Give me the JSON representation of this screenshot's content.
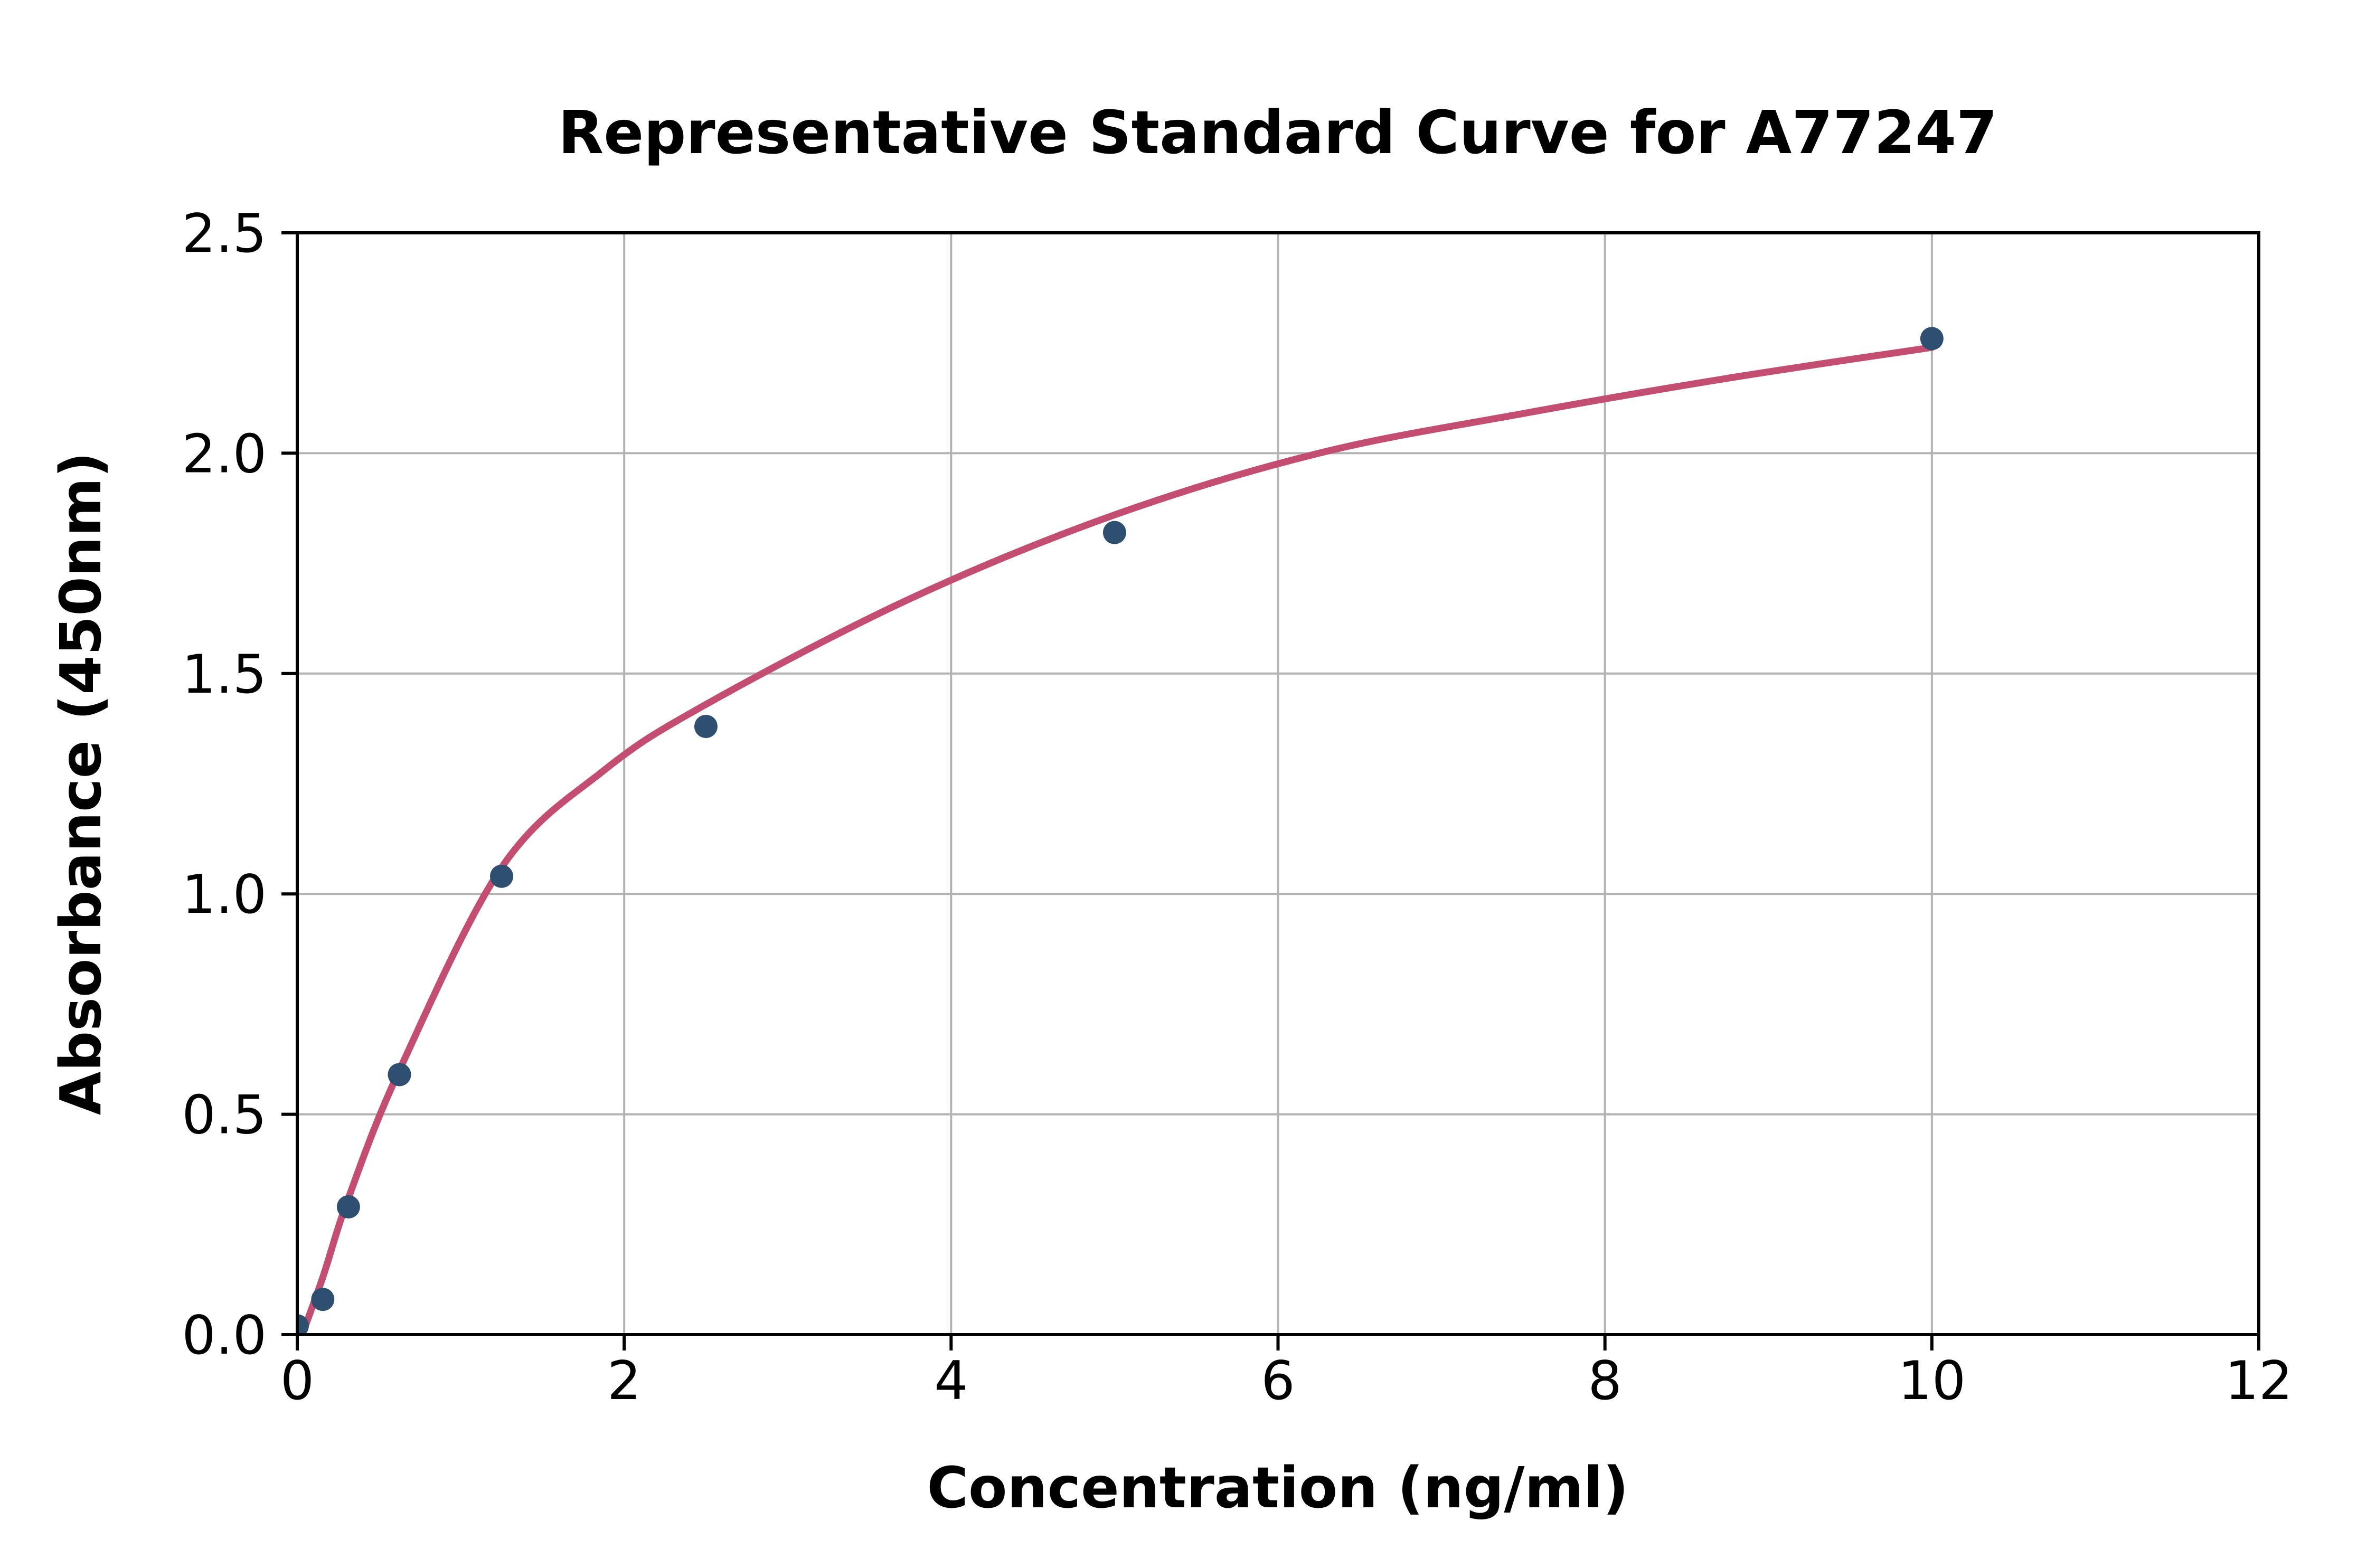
{
  "chart_data": {
    "type": "scatter",
    "title": "Representative Standard Curve for A77247",
    "xlabel": "Concentration (ng/ml)",
    "ylabel": "Absorbance (450nm)",
    "xlim": [
      0,
      12
    ],
    "ylim": [
      0,
      2.5
    ],
    "xticks": [
      0,
      2,
      4,
      6,
      8,
      10,
      12
    ],
    "xticklabels": [
      "0",
      "2",
      "4",
      "6",
      "8",
      "10",
      "12"
    ],
    "yticks": [
      0,
      0.5,
      1.0,
      1.5,
      2.0,
      2.5
    ],
    "yticklabels": [
      "0.0",
      "0.5",
      "1.0",
      "1.5",
      "2.0",
      "2.5"
    ],
    "grid": true,
    "legend": "none",
    "colors": {
      "marker": "#2F4F70",
      "curve": "#C34E72",
      "gridline": "#B3B3B3",
      "spine": "#000000",
      "text": "#000000",
      "background": "#FFFFFF"
    },
    "series": [
      {
        "name": "standard-points",
        "type": "scatter",
        "points": [
          [
            0,
            0.02
          ],
          [
            0.156,
            0.08
          ],
          [
            0.313,
            0.29
          ],
          [
            0.625,
            0.59
          ],
          [
            1.25,
            1.04
          ],
          [
            2.5,
            1.38
          ],
          [
            5,
            1.82
          ],
          [
            10,
            2.26
          ]
        ]
      },
      {
        "name": "fitted-curve",
        "type": "line",
        "points": [
          [
            0.02,
            -0.01
          ],
          [
            0.156,
            0.13
          ],
          [
            0.313,
            0.31
          ],
          [
            0.625,
            0.6
          ],
          [
            1.25,
            1.06
          ],
          [
            1.875,
            1.28
          ],
          [
            2.5,
            1.43
          ],
          [
            3.75,
            1.67
          ],
          [
            5,
            1.86
          ],
          [
            6.25,
            2.0
          ],
          [
            7.5,
            2.09
          ],
          [
            8.75,
            2.17
          ],
          [
            10,
            2.24
          ]
        ]
      }
    ]
  }
}
